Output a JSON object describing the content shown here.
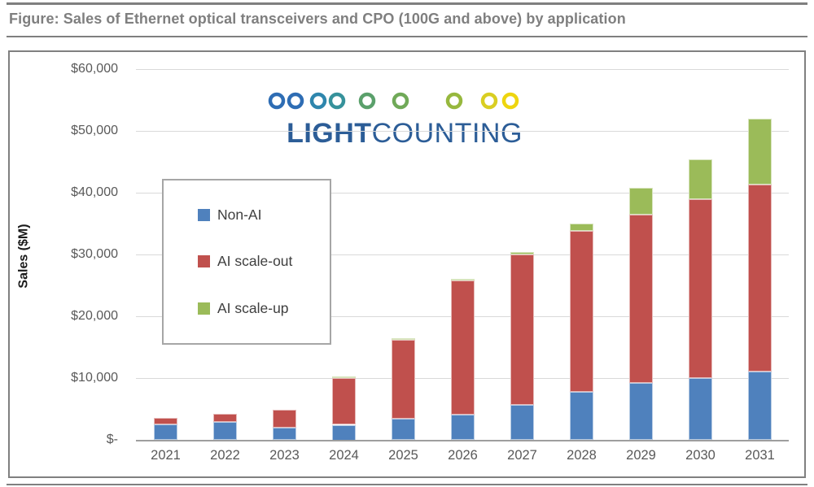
{
  "figure_title": "Figure: Sales of Ethernet optical transceivers and CPO (100G and above) by application",
  "logo": {
    "word1": "LIGHT",
    "word2": "COUNTING",
    "wordmark_color": "#2c5d97",
    "dot_positions": [
      15,
      38,
      66,
      89,
      126,
      167,
      233,
      276,
      302
    ],
    "dot_colors": [
      "#2e6db4",
      "#2e6db4",
      "#2e86ad",
      "#36929b",
      "#5aa06b",
      "#70a958",
      "#97b83e",
      "#d9ce22",
      "#eed50f"
    ],
    "line_gradient": [
      "#2e6db4",
      "#70a958",
      "#eed50f"
    ]
  },
  "chart_data": {
    "type": "bar",
    "stacked": true,
    "categories": [
      "2021",
      "2022",
      "2023",
      "2024",
      "2025",
      "2026",
      "2027",
      "2028",
      "2029",
      "2030",
      "2031"
    ],
    "series": [
      {
        "name": "Non-AI",
        "color": "#4F81BD",
        "border_color": "#b8cce4",
        "values": [
          2600,
          2900,
          2000,
          2500,
          3500,
          4200,
          5700,
          7800,
          9300,
          10100,
          11100
        ]
      },
      {
        "name": "AI scale-out",
        "color": "#C0504D",
        "border_color": "#e6b9b8",
        "values": [
          1000,
          1350,
          2900,
          7600,
          12700,
          21600,
          24350,
          26100,
          27200,
          28900,
          30300
        ]
      },
      {
        "name": "AI scale-up",
        "color": "#9BBB59",
        "border_color": "#d7e4bd",
        "values": [
          0,
          0,
          0,
          200,
          250,
          350,
          450,
          1200,
          4400,
          6500,
          10600
        ]
      }
    ],
    "ylabel": "Sales ($M)",
    "ylim": [
      0,
      60000
    ],
    "ytick_step": 10000,
    "ytick_labels": [
      "$-",
      "$10,000",
      "$20,000",
      "$30,000",
      "$40,000",
      "$50,000",
      "$60,000"
    ],
    "grid": true,
    "gridline_color": "#d9d9d9",
    "axis_line_color": "#9e9e9e",
    "tick_label_color": "#595959",
    "legend_position": "upper-left-inside"
  }
}
